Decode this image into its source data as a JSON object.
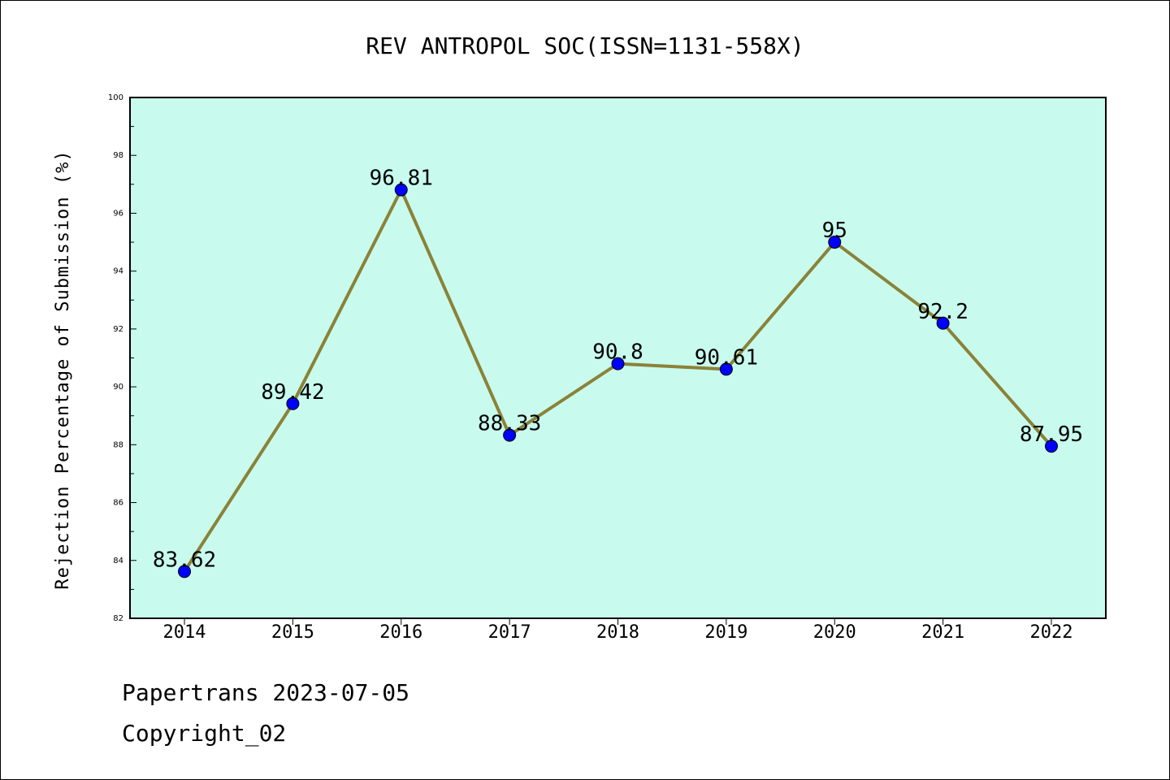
{
  "chart_data": {
    "type": "line",
    "title": "REV ANTROPOL SOC(ISSN=1131-558X)",
    "xlabel": "",
    "ylabel": "Rejection Percentage of Submission (%)",
    "categories": [
      "2014",
      "2015",
      "2016",
      "2017",
      "2018",
      "2019",
      "2020",
      "2021",
      "2022"
    ],
    "values": [
      83.62,
      89.42,
      96.81,
      88.33,
      90.8,
      90.61,
      95,
      92.2,
      87.95
    ],
    "data_labels": [
      "83.62",
      "89.42",
      "96.81",
      "88.33",
      "90.8",
      "90.61",
      "95",
      "92.2",
      "87.95"
    ],
    "ylim": [
      82,
      100
    ],
    "yticks": [
      "82",
      "84",
      "86",
      "88",
      "90",
      "92",
      "94",
      "96",
      "98",
      "100"
    ],
    "grid": false,
    "colors": {
      "plot_bg": "#c8fbee",
      "line": "#8b8238",
      "marker": "#0000ff"
    }
  },
  "footer": {
    "line1": "Papertrans 2023-07-05",
    "line2": "Copyright_02"
  }
}
